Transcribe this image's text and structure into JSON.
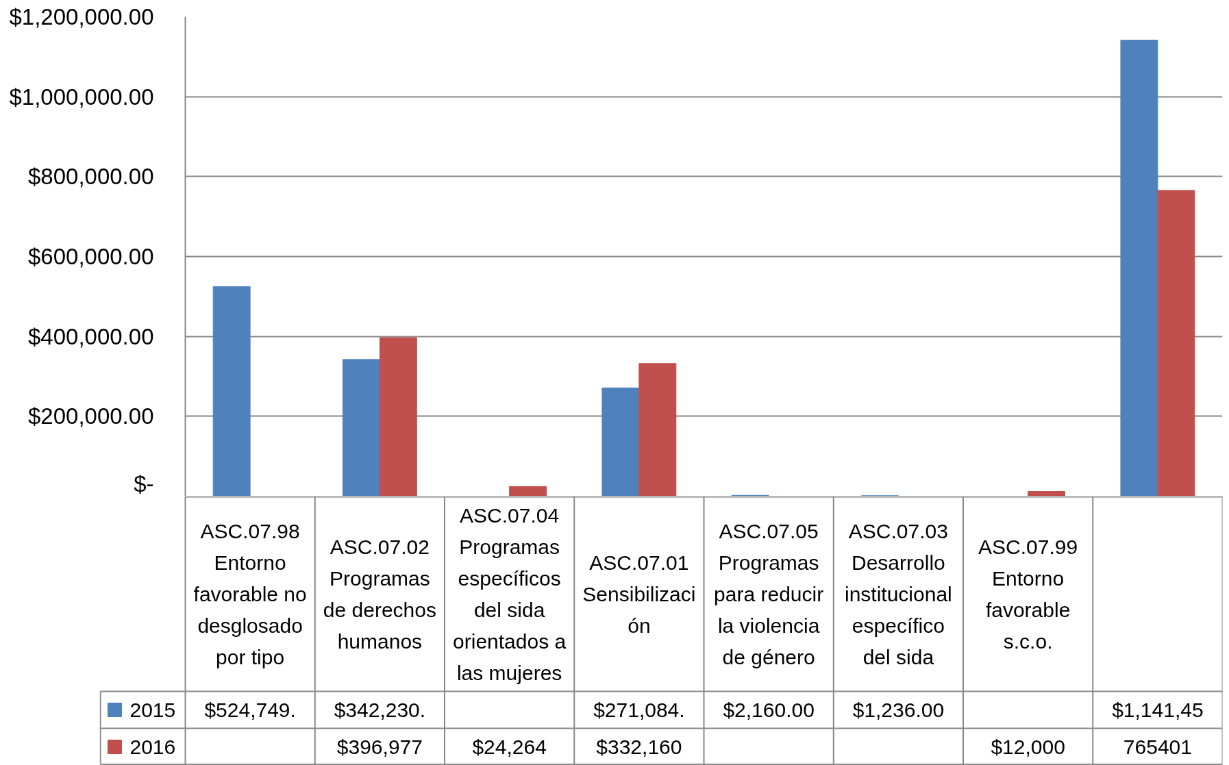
{
  "chart_data": {
    "type": "bar",
    "categories": [
      "ASC.07.98\nEntorno\nfavorable no\ndesglosado\npor tipo",
      "ASC.07.02\nProgramas\nde derechos\nhumanos",
      "ASC.07.04\nProgramas\nespecíficos\ndel sida\norientados a\nlas mujeres",
      "ASC.07.01\nSensibilizaci\nón",
      "ASC.07.05\nProgramas\npara reducir\nla violencia\nde género",
      "ASC.07.03\nDesarrollo\ninstitucional\nespecífico\ndel sida",
      "ASC.07.99\nEntorno\nfavorable\ns.c.o.",
      null
    ],
    "series": [
      {
        "name": "2015",
        "color": "#4f81bd",
        "values": [
          524749,
          342230,
          null,
          271084,
          2160,
          1236,
          null,
          1141450
        ],
        "value_labels": [
          "$524,749.",
          "$342,230.",
          null,
          "$271,084.",
          "$2,160.00",
          "$1,236.00",
          null,
          "$1,141,45"
        ]
      },
      {
        "name": "2016",
        "color": "#c0504d",
        "values": [
          null,
          396977,
          24264,
          332160,
          null,
          null,
          12000,
          765401
        ],
        "value_labels": [
          null,
          "$396,977",
          "$24,264",
          "$332,160",
          null,
          null,
          "$12,000",
          "765401"
        ]
      }
    ],
    "ylim": [
      0,
      1200000
    ],
    "yticks": [
      {
        "value": 0,
        "label": "$-"
      },
      {
        "value": 200000,
        "label": "$200,000.00"
      },
      {
        "value": 400000,
        "label": "$400,000.00"
      },
      {
        "value": 600000,
        "label": "$600,000.00"
      },
      {
        "value": 800000,
        "label": "$800,000.00"
      },
      {
        "value": 1000000,
        "label": "$1,000,000.00"
      },
      {
        "value": 1200000,
        "label": "$1,200,000.00"
      }
    ],
    "grid": "y",
    "legend": "bottom left"
  }
}
